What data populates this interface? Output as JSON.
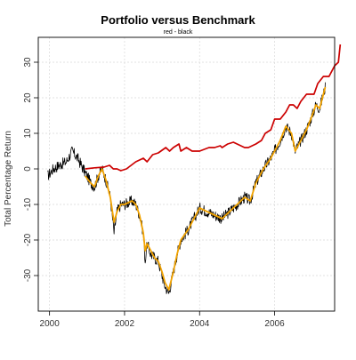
{
  "chart_data": {
    "type": "line",
    "title": "Portfolio versus Benchmark",
    "subtitle": "red - black",
    "xlabel": "",
    "ylabel": "Total Percentage Return",
    "xlim": [
      1999.7,
      2007.6
    ],
    "ylim": [
      -40,
      37
    ],
    "x_ticks": [
      {
        "value": 2000,
        "label": "2000"
      },
      {
        "value": 2002,
        "label": "2002"
      },
      {
        "value": 2004,
        "label": "2004"
      },
      {
        "value": 2006,
        "label": "2006"
      }
    ],
    "y_ticks": [
      {
        "value": -30,
        "label": "-30"
      },
      {
        "value": -20,
        "label": "-20"
      },
      {
        "value": -10,
        "label": "-10"
      },
      {
        "value": 0,
        "label": "0"
      },
      {
        "value": 10,
        "label": "10"
      },
      {
        "value": 20,
        "label": "20"
      },
      {
        "value": 30,
        "label": "30"
      }
    ],
    "grid": true,
    "series": [
      {
        "color": "#000000",
        "kind": "noisy-line",
        "points": [
          [
            1999.95,
            -2
          ],
          [
            2000.1,
            0
          ],
          [
            2000.25,
            1
          ],
          [
            2000.45,
            2
          ],
          [
            2000.6,
            5
          ],
          [
            2000.75,
            3
          ],
          [
            2000.9,
            0
          ],
          [
            2001.0,
            -2
          ],
          [
            2001.1,
            -4
          ],
          [
            2001.2,
            -5
          ],
          [
            2001.3,
            -2
          ],
          [
            2001.4,
            0
          ],
          [
            2001.5,
            -3
          ],
          [
            2001.62,
            -8
          ],
          [
            2001.72,
            -18
          ],
          [
            2001.8,
            -12
          ],
          [
            2001.9,
            -10
          ],
          [
            2002.0,
            -10
          ],
          [
            2002.2,
            -9
          ],
          [
            2002.3,
            -10
          ],
          [
            2002.4,
            -13
          ],
          [
            2002.5,
            -18
          ],
          [
            2002.55,
            -26
          ],
          [
            2002.6,
            -21
          ],
          [
            2002.7,
            -24
          ],
          [
            2002.8,
            -25
          ],
          [
            2002.9,
            -26
          ],
          [
            2003.0,
            -30
          ],
          [
            2003.08,
            -33
          ],
          [
            2003.18,
            -35
          ],
          [
            2003.3,
            -29
          ],
          [
            2003.4,
            -24
          ],
          [
            2003.5,
            -20
          ],
          [
            2003.7,
            -17
          ],
          [
            2003.9,
            -13
          ],
          [
            2004.0,
            -11
          ],
          [
            2004.2,
            -12
          ],
          [
            2004.4,
            -13
          ],
          [
            2004.6,
            -14
          ],
          [
            2004.8,
            -12
          ],
          [
            2005.0,
            -10
          ],
          [
            2005.2,
            -8
          ],
          [
            2005.35,
            -9
          ],
          [
            2005.5,
            -4
          ],
          [
            2005.7,
            0
          ],
          [
            2005.9,
            3
          ],
          [
            2006.0,
            5
          ],
          [
            2006.15,
            8
          ],
          [
            2006.3,
            12
          ],
          [
            2006.45,
            10
          ],
          [
            2006.55,
            5
          ],
          [
            2006.7,
            8
          ],
          [
            2006.85,
            11
          ],
          [
            2007.0,
            15
          ],
          [
            2007.1,
            18
          ],
          [
            2007.2,
            17
          ],
          [
            2007.35,
            23
          ]
        ]
      },
      {
        "color": "#f2a300",
        "kind": "smooth-line",
        "points": [
          [
            2000.95,
            -2
          ],
          [
            2001.1,
            -4
          ],
          [
            2001.2,
            -5
          ],
          [
            2001.3,
            -2
          ],
          [
            2001.4,
            0
          ],
          [
            2001.5,
            -3
          ],
          [
            2001.62,
            -8
          ],
          [
            2001.72,
            -15
          ],
          [
            2001.8,
            -12
          ],
          [
            2001.9,
            -10
          ],
          [
            2002.0,
            -10
          ],
          [
            2002.2,
            -9
          ],
          [
            2002.3,
            -10
          ],
          [
            2002.4,
            -13
          ],
          [
            2002.5,
            -18
          ],
          [
            2002.55,
            -23
          ],
          [
            2002.6,
            -21
          ],
          [
            2002.7,
            -23
          ],
          [
            2002.8,
            -25
          ],
          [
            2002.9,
            -26
          ],
          [
            2003.0,
            -29
          ],
          [
            2003.08,
            -32
          ],
          [
            2003.18,
            -34
          ],
          [
            2003.3,
            -29
          ],
          [
            2003.4,
            -24
          ],
          [
            2003.5,
            -20
          ],
          [
            2003.7,
            -17
          ],
          [
            2003.9,
            -13
          ],
          [
            2004.0,
            -11
          ],
          [
            2004.2,
            -12
          ],
          [
            2004.4,
            -13
          ],
          [
            2004.6,
            -14
          ],
          [
            2004.8,
            -12
          ],
          [
            2005.0,
            -10
          ],
          [
            2005.2,
            -8
          ],
          [
            2005.35,
            -9
          ],
          [
            2005.5,
            -4
          ],
          [
            2005.7,
            0
          ],
          [
            2005.9,
            3
          ],
          [
            2006.0,
            5
          ],
          [
            2006.15,
            8
          ],
          [
            2006.3,
            12
          ],
          [
            2006.45,
            10
          ],
          [
            2006.55,
            5
          ],
          [
            2006.7,
            8
          ],
          [
            2006.85,
            11
          ],
          [
            2007.0,
            15
          ],
          [
            2007.1,
            18
          ],
          [
            2007.2,
            17
          ],
          [
            2007.35,
            23
          ]
        ]
      },
      {
        "color": "#cc0000",
        "kind": "line",
        "points": [
          [
            2000.95,
            0
          ],
          [
            2001.2,
            0.3
          ],
          [
            2001.45,
            0.5
          ],
          [
            2001.6,
            1
          ],
          [
            2001.7,
            0
          ],
          [
            2001.8,
            0
          ],
          [
            2001.9,
            -0.5
          ],
          [
            2002.05,
            0
          ],
          [
            2002.3,
            2
          ],
          [
            2002.5,
            3
          ],
          [
            2002.6,
            2
          ],
          [
            2002.75,
            4
          ],
          [
            2002.9,
            4.5
          ],
          [
            2003.1,
            6
          ],
          [
            2003.2,
            5
          ],
          [
            2003.3,
            6
          ],
          [
            2003.45,
            7
          ],
          [
            2003.5,
            5
          ],
          [
            2003.65,
            6
          ],
          [
            2003.8,
            5
          ],
          [
            2004.0,
            5
          ],
          [
            2004.25,
            6
          ],
          [
            2004.4,
            6
          ],
          [
            2004.55,
            6.5
          ],
          [
            2004.6,
            6
          ],
          [
            2004.75,
            7
          ],
          [
            2004.9,
            7.5
          ],
          [
            2005.0,
            7
          ],
          [
            2005.2,
            6
          ],
          [
            2005.3,
            6
          ],
          [
            2005.5,
            7
          ],
          [
            2005.65,
            8
          ],
          [
            2005.75,
            10
          ],
          [
            2005.9,
            11
          ],
          [
            2006.0,
            14
          ],
          [
            2006.15,
            14
          ],
          [
            2006.3,
            16
          ],
          [
            2006.4,
            18
          ],
          [
            2006.5,
            18
          ],
          [
            2006.6,
            17
          ],
          [
            2006.7,
            19
          ],
          [
            2006.85,
            21
          ],
          [
            2006.95,
            21
          ],
          [
            2007.05,
            21
          ],
          [
            2007.15,
            24
          ],
          [
            2007.3,
            26
          ],
          [
            2007.45,
            26
          ],
          [
            2007.6,
            29
          ],
          [
            2007.7,
            30
          ],
          [
            2007.75,
            35
          ]
        ]
      }
    ]
  }
}
